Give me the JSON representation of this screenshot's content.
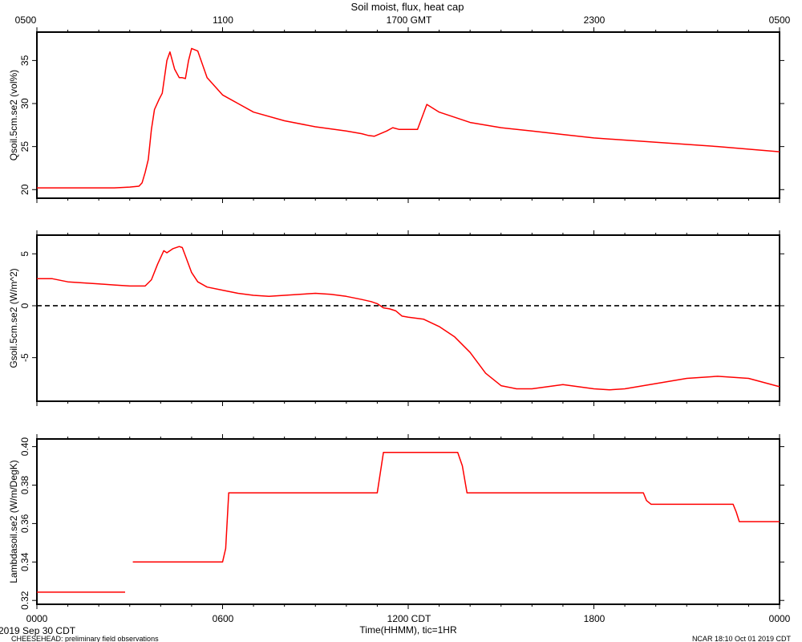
{
  "title": "Soil moist, flux, heat cap",
  "top_axis_ticks": [
    "0500",
    "1100",
    "1700 GMT",
    "2300",
    "0500"
  ],
  "bottom_axis_ticks": [
    "0000",
    "0600",
    "1200 CDT",
    "1800",
    "0000"
  ],
  "xlabel": "Time(HHMM), tic=1HR",
  "date_label": "2019 Sep 30 CDT",
  "footer_left": "CHEESEHEAD: preliminary field observations",
  "footer_right": "NCAR 18:10 Oct 01 2019 CDT",
  "colors": {
    "series": "#ff0000",
    "axis": "#000000",
    "zero_line": "#000000"
  },
  "chart_data": [
    {
      "type": "line",
      "ylabel": "Qsoil.5cm.se2 (vol%)",
      "ylim": [
        19,
        38.3
      ],
      "yticks": [
        20,
        25,
        30,
        35
      ],
      "series": [
        {
          "x": [
            0,
            1,
            2,
            2.5,
            3,
            3.3,
            3.4,
            3.5,
            3.6,
            3.7,
            3.8,
            3.95,
            4.05,
            4.2,
            4.3,
            4.45,
            4.6,
            4.7,
            4.8,
            4.9,
            5,
            5.2,
            5.5,
            6,
            6.5,
            7,
            8,
            9,
            10,
            10.5,
            10.7,
            10.9,
            11.1,
            11.3,
            11.5,
            11.7,
            11.8,
            12,
            12.3,
            12.6,
            13,
            14,
            15,
            16,
            17,
            18,
            20,
            22,
            24
          ],
          "values": [
            20.2,
            20.2,
            20.2,
            20.2,
            20.3,
            20.4,
            20.8,
            22,
            23.5,
            27,
            29.3,
            30.5,
            31.2,
            35,
            36,
            34,
            33,
            33,
            32.9,
            35,
            36.4,
            36.1,
            33,
            31,
            30,
            29,
            28,
            27.3,
            26.8,
            26.5,
            26.3,
            26.2,
            26.5,
            26.8,
            27.2,
            27.0,
            27,
            27,
            27.0,
            29.9,
            29,
            27.8,
            27.2,
            26.8,
            26.4,
            26.0,
            25.5,
            25.0,
            24.4
          ]
        }
      ]
    },
    {
      "type": "line",
      "ylabel": "Gsoil.5cm.se2 (W/m^2)",
      "ylim": [
        -9.2,
        6.8
      ],
      "yticks": [
        -5,
        0,
        5
      ],
      "reference_line": 0,
      "series": [
        {
          "x": [
            0,
            0.5,
            1,
            1.5,
            2,
            2.5,
            3,
            3.3,
            3.5,
            3.7,
            3.9,
            4.1,
            4.2,
            4.4,
            4.6,
            4.7,
            4.8,
            5,
            5.2,
            5.5,
            6,
            6.5,
            7,
            7.5,
            8,
            8.5,
            9,
            9.5,
            10,
            10.5,
            10.8,
            11,
            11.2,
            11.4,
            11.6,
            11.8,
            12,
            12.5,
            13,
            13.5,
            14,
            14.5,
            15,
            15.5,
            16,
            16.5,
            17,
            17.5,
            18,
            18.5,
            19,
            20,
            21,
            22,
            23,
            24
          ],
          "values": [
            2.6,
            2.6,
            2.3,
            2.2,
            2.1,
            2.0,
            1.9,
            1.9,
            1.9,
            2.5,
            4.0,
            5.3,
            5.1,
            5.5,
            5.7,
            5.6,
            4.8,
            3.2,
            2.3,
            1.8,
            1.5,
            1.2,
            1.0,
            0.9,
            1.0,
            1.1,
            1.2,
            1.1,
            0.9,
            0.6,
            0.4,
            0.2,
            -0.2,
            -0.3,
            -0.5,
            -1.0,
            -1.1,
            -1.3,
            -2.0,
            -3.0,
            -4.5,
            -6.5,
            -7.7,
            -8.0,
            -8.0,
            -7.8,
            -7.6,
            -7.8,
            -8.0,
            -8.1,
            -8.0,
            -7.5,
            -7.0,
            -6.8,
            -7.0,
            -7.8
          ]
        }
      ]
    },
    {
      "type": "line",
      "ylabel": "Lambdasoil.se2 (W/m/DegK)",
      "ylim": [
        0.318,
        0.404
      ],
      "yticks": [
        0.32,
        0.34,
        0.36,
        0.38,
        0.4
      ],
      "series": [
        {
          "segments": [
            {
              "x": [
                0,
                2.85
              ],
              "values": [
                0.3243,
                0.3243
              ]
            },
            {
              "x": [
                3.1,
                6.0,
                6.1,
                6.2,
                11.0,
                11.2,
                13.6,
                13.75,
                13.9,
                19.6,
                19.7,
                19.85,
                22.5,
                22.6,
                22.7,
                24
              ],
              "values": [
                0.34,
                0.34,
                0.347,
                0.376,
                0.376,
                0.397,
                0.397,
                0.39,
                0.376,
                0.376,
                0.372,
                0.37,
                0.37,
                0.366,
                0.361,
                0.361
              ]
            }
          ]
        }
      ]
    }
  ]
}
